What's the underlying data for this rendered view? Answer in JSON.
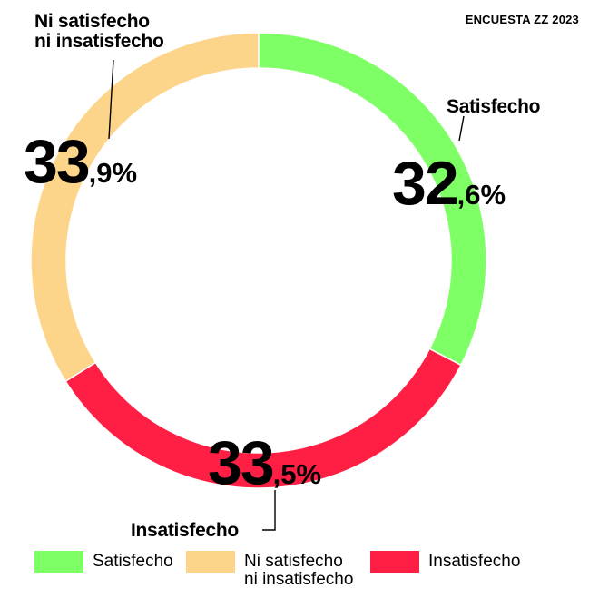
{
  "source": "ENCUESTA ZZ 2023",
  "chart_data": {
    "type": "pie",
    "variant": "donut",
    "title": "",
    "categories": [
      "Satisfecho",
      "Insatisfecho",
      "Ni satisfecho ni insatisfecho"
    ],
    "values": [
      32.6,
      33.5,
      33.9
    ],
    "unit": "%",
    "colors": [
      "#7fff66",
      "#ff1f44",
      "#fdd58a"
    ],
    "start": "top (12 o'clock)",
    "direction": "clockwise",
    "legend": "bottom",
    "slices": [
      {
        "key": "sat",
        "label_lines": [
          "Satisfecho"
        ],
        "int": "32",
        "dec": ",6%",
        "legend_lines": [
          "Satisfecho"
        ]
      },
      {
        "key": "insat",
        "label_lines": [
          "Insatisfecho"
        ],
        "int": "33",
        "dec": ",5%",
        "legend_lines": [
          "Insatisfecho"
        ]
      },
      {
        "key": "ni",
        "label_lines": [
          "Ni satisfecho",
          "ni insatisfecho"
        ],
        "int": "33",
        "dec": ",9%",
        "legend_lines": [
          "Ni satisfecho",
          "ni insatisfecho"
        ]
      }
    ]
  }
}
